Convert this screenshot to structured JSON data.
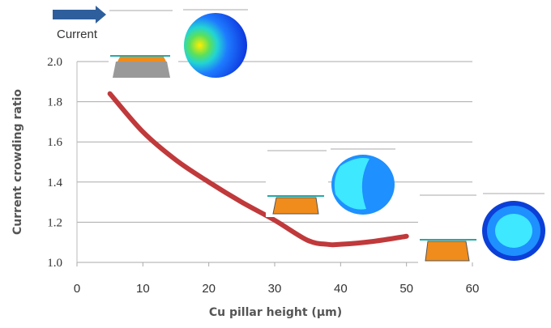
{
  "chart_data": {
    "type": "line",
    "xlabel": "Cu pillar height (μm)",
    "ylabel": "Current crowding ratio",
    "annotation": "Current",
    "x": [
      5,
      10,
      15,
      20,
      25,
      30,
      35,
      38,
      40,
      45,
      50
    ],
    "values": [
      1.84,
      1.65,
      1.51,
      1.4,
      1.3,
      1.21,
      1.11,
      1.09,
      1.09,
      1.105,
      1.13
    ],
    "color": "#c0393b",
    "xlim": [
      0,
      60
    ],
    "xticks": [
      0,
      10,
      20,
      30,
      40,
      50,
      60
    ],
    "ylim": [
      1,
      2
    ],
    "yticks": [
      {
        "value": 1,
        "label": "1.0"
      },
      1.2,
      1.4,
      1.6,
      1.8,
      {
        "value": 2,
        "label": "2.0"
      }
    ],
    "grid": true
  }
}
